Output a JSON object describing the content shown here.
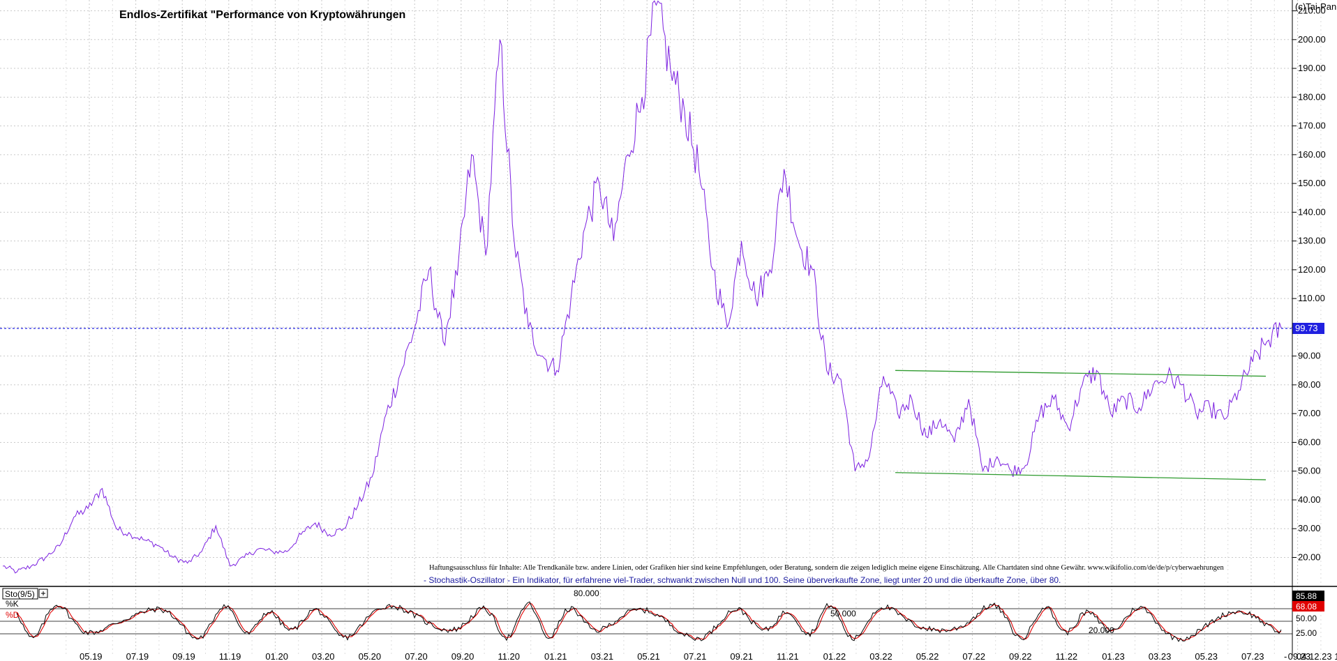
{
  "chart_data": [
    {
      "type": "line",
      "title": "Endlos-Zertifikat \"Performance von Kryptowährungen",
      "copyright": "(c)Tai-Pan",
      "y_axis_position": "right",
      "ylim": [
        14,
        212
      ],
      "yticks": [
        20,
        30,
        40,
        50,
        60,
        70,
        80,
        90,
        100,
        110,
        120,
        130,
        140,
        150,
        160,
        170,
        180,
        190,
        200,
        210
      ],
      "ytick_labels": [
        "20.00",
        "30.00",
        "40.00",
        "50.00",
        "60.00",
        "70.00",
        "80.00",
        "90.00",
        "",
        "110.00",
        "120.00",
        "130.00",
        "140.00",
        "150.00",
        "160.00",
        "170.00",
        "180.00",
        "190.00",
        "200.00",
        "210.00"
      ],
      "grid": true,
      "current_value": 99.73,
      "current_value_label": "99.73",
      "series": [
        {
          "color": "#7b1fe0",
          "points": [
            [
              "03.19",
              17
            ],
            [
              "04.19",
              15
            ],
            [
              "05.19",
              17
            ],
            [
              "06.19",
              20
            ],
            [
              "07.19",
              24
            ],
            [
              "08.19",
              34
            ],
            [
              "09.19",
              37
            ],
            [
              "09.19b",
              44
            ],
            [
              "10.19",
              30
            ],
            [
              "11.19",
              28
            ],
            [
              "12.19",
              26
            ],
            [
              "01.20",
              24
            ],
            [
              "02.20",
              20
            ],
            [
              "02.20b",
              18
            ],
            [
              "03.20",
              22
            ],
            [
              "03.20b",
              31
            ],
            [
              "03.20c",
              17
            ],
            [
              "04.20",
              20
            ],
            [
              "05.20",
              23
            ],
            [
              "06.20",
              22
            ],
            [
              "07.20",
              22
            ],
            [
              "08.20",
              28
            ],
            [
              "09.20",
              32
            ],
            [
              "10.20",
              28
            ],
            [
              "11.20",
              30
            ],
            [
              "12.20",
              38
            ],
            [
              "12.20b",
              48
            ],
            [
              "01.21",
              70
            ],
            [
              "01.21b",
              84
            ],
            [
              "02.21",
              100
            ],
            [
              "02.21b",
              120
            ],
            [
              "03.21",
              95
            ],
            [
              "03.21b",
              118
            ],
            [
              "04.21",
              160
            ],
            [
              "04.21b",
              125
            ],
            [
              "05.21",
              200
            ],
            [
              "05.21b",
              130
            ],
            [
              "06.21",
              100
            ],
            [
              "06.21b",
              90
            ],
            [
              "07.21",
              85
            ],
            [
              "07.21b",
              110
            ],
            [
              "08.21",
              135
            ],
            [
              "09.21",
              150
            ],
            [
              "09.21b",
              130
            ],
            [
              "10.21",
              160
            ],
            [
              "10.21b",
              180
            ],
            [
              "11.21",
              212
            ],
            [
              "11.21b",
              190
            ],
            [
              "12.21",
              175
            ],
            [
              "12.21b",
              155
            ],
            [
              "01.22",
              120
            ],
            [
              "01.22b",
              100
            ],
            [
              "02.22",
              130
            ],
            [
              "02.22b",
              110
            ],
            [
              "03.22",
              120
            ],
            [
              "03.22b",
              155
            ],
            [
              "04.22",
              130
            ],
            [
              "05.22",
              120
            ],
            [
              "05.22b",
              85
            ],
            [
              "06.22",
              82
            ],
            [
              "06.22b",
              50
            ],
            [
              "07.22",
              55
            ],
            [
              "08.22",
              83
            ],
            [
              "08.22b",
              70
            ],
            [
              "09.22",
              75
            ],
            [
              "09.22b",
              62
            ],
            [
              "10.22",
              68
            ],
            [
              "10.22b",
              60
            ],
            [
              "11.22",
              75
            ],
            [
              "11.22b",
              50
            ],
            [
              "12.22",
              55
            ],
            [
              "12.22b",
              50
            ],
            [
              "01.23",
              52
            ],
            [
              "02.23",
              70
            ],
            [
              "02.23b",
              75
            ],
            [
              "03.23",
              65
            ],
            [
              "03.23b",
              80
            ],
            [
              "04.23",
              85
            ],
            [
              "04.23b",
              70
            ],
            [
              "05.23",
              75
            ],
            [
              "06.23",
              72
            ],
            [
              "06.23b",
              80
            ],
            [
              "07.23",
              83
            ],
            [
              "08.23",
              80
            ],
            [
              "08.23b",
              70
            ],
            [
              "09.23",
              72
            ],
            [
              "10.23",
              68
            ],
            [
              "10.23b",
              78
            ],
            [
              "11.23",
              88
            ],
            [
              "11.23b",
              95
            ],
            [
              "12.23",
              99.73
            ]
          ]
        }
      ],
      "trendlines": [
        {
          "color": "#2e9a2e",
          "from": [
            "06.22",
            85
          ],
          "to": [
            "12.23",
            83
          ]
        },
        {
          "color": "#2e9a2e",
          "from": [
            "06.22",
            49.5
          ],
          "to": [
            "12.23",
            47
          ]
        }
      ],
      "disclaimer": "Haftungsausschluss für Inhalte: Alle Trendkanäle bzw. andere Linien, oder Grafiken hier sind keine Empfehlungen, oder Beratung, sondern die zeigen lediglich meine eigene Einschätzung. Alle Chartdaten sind ohne Gewähr.  www.wikifolio.com/de/de/p/cyberwaehrungen",
      "info_line": "- Stochastik-Oszillator - Ein Indikator, für erfahrene viel-Trader, schwankt zwischen Null und 100. Seine überverkaufte Zone, liegt unter 20 und die überkaufte Zone, über 80."
    },
    {
      "type": "line",
      "title": "Sto(9/5)",
      "ylim": [
        0,
        100
      ],
      "levels": [
        {
          "value": 80,
          "label": "80.000"
        },
        {
          "value": 50,
          "label": "50.000"
        },
        {
          "value": 20,
          "label": "20.000"
        }
      ],
      "ytick_labels": [
        "50.00",
        "25.00"
      ],
      "series": [
        {
          "name": "%K",
          "color": "#000000",
          "current": 85.88,
          "current_label": "85.88"
        },
        {
          "name": "%D",
          "color": "#e00000",
          "current": 68.08,
          "current_label": "68.08"
        }
      ]
    }
  ],
  "x_axis": {
    "tick_labels": [
      "05.19",
      "07.19",
      "09.19",
      "11.19",
      "01.20",
      "03.20",
      "05.20",
      "07.20",
      "09.20",
      "11.20",
      "01.21",
      "03.21",
      "05.21",
      "07.21",
      "09.21",
      "11.21",
      "01.22",
      "03.22",
      "05.22",
      "07.22",
      "09.22",
      "11.22",
      "01.23",
      "03.23",
      "05.23",
      "07.23",
      "09.23",
      "11.23"
    ],
    "last_date_label": "04.12.23",
    "dash_label": "-"
  },
  "colors": {
    "price": "#7b1fe0",
    "trend": "#2e9a2e",
    "current_line": "#2020e0",
    "stoch_k": "#000000",
    "stoch_d": "#e00000",
    "grid": "#c8c8c8"
  }
}
